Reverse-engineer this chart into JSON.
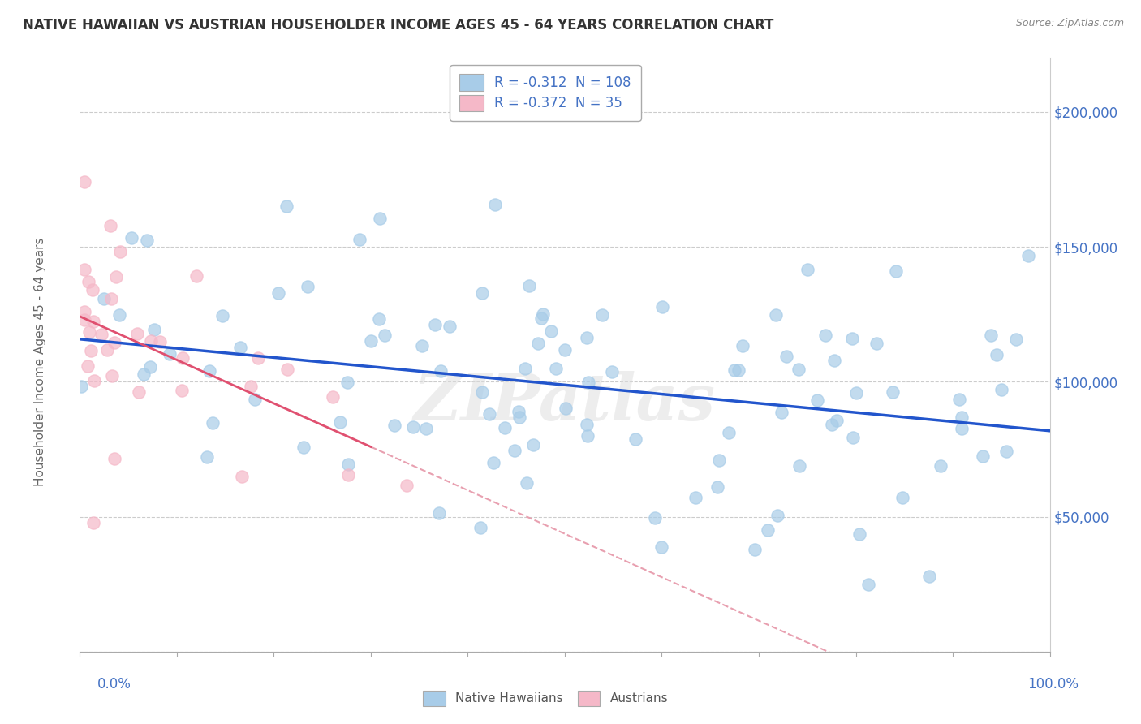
{
  "title": "NATIVE HAWAIIAN VS AUSTRIAN HOUSEHOLDER INCOME AGES 45 - 64 YEARS CORRELATION CHART",
  "source": "Source: ZipAtlas.com",
  "ylabel": "Householder Income Ages 45 - 64 years",
  "r_hawaiian": -0.312,
  "n_hawaiian": 108,
  "r_austrian": -0.372,
  "n_austrian": 35,
  "color_hawaiian": "#a8cce8",
  "color_austrian": "#f5b8c8",
  "color_hawaiian_line": "#2255cc",
  "color_austrian_line": "#e05070",
  "color_austrian_dashed": "#e8a0b0",
  "watermark": "ZIPatlas",
  "xmin": 0,
  "xmax": 100,
  "ymin": 0,
  "ymax": 220000,
  "hawaiian_slope": -450,
  "hawaiian_intercept": 123000,
  "austrian_slope": -1800,
  "austrian_intercept": 128000,
  "austrian_x_max_solid": 30
}
